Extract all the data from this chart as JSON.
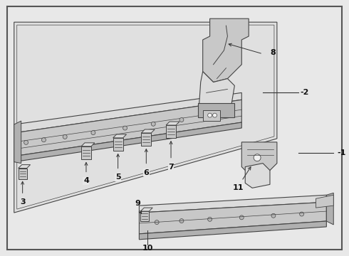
{
  "bg_color": "#e8e8e8",
  "border_color": "#555555",
  "line_color": "#333333",
  "edge_color": "#444444",
  "fill_light": "#dcdcdc",
  "fill_mid": "#c8c8c8",
  "fill_dark": "#b0b0b0",
  "fill_white": "#f0f0f0"
}
